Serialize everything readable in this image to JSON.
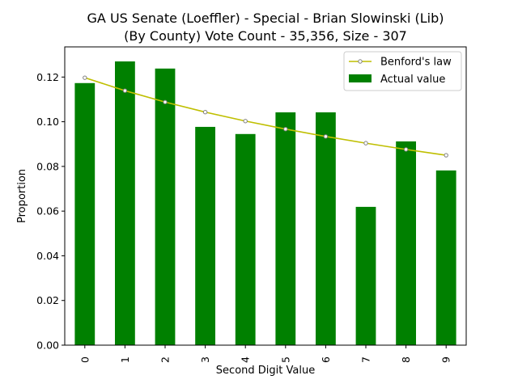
{
  "chart_data": {
    "type": "bar",
    "title_line1": "GA US Senate (Loeffler) - Special - Brian Slowinski (Lib)",
    "title_line2": "(By County) Vote Count - 35,356, Size - 307",
    "xlabel": "Second Digit Value",
    "ylabel": "Proportion",
    "categories": [
      "0",
      "1",
      "2",
      "3",
      "4",
      "5",
      "6",
      "7",
      "8",
      "9"
    ],
    "ylim": [
      0,
      0.1335
    ],
    "yticks": [
      0.0,
      0.02,
      0.04,
      0.06,
      0.08,
      0.1,
      0.12
    ],
    "ytick_labels": [
      "0.00",
      "0.02",
      "0.04",
      "0.06",
      "0.08",
      "0.10",
      "0.12"
    ],
    "grid": false,
    "legend_position": "top-right",
    "series": [
      {
        "name": "Actual value",
        "kind": "bar",
        "color": "#008000",
        "values": [
          0.1173,
          0.127,
          0.1238,
          0.0977,
          0.0945,
          0.1042,
          0.1042,
          0.0619,
          0.0912,
          0.0782
        ]
      },
      {
        "name": "Benford's law",
        "kind": "line",
        "color": "#bfbf00",
        "values": [
          0.1197,
          0.1139,
          0.1088,
          0.1043,
          0.1003,
          0.0967,
          0.0934,
          0.0904,
          0.0876,
          0.085
        ]
      }
    ]
  }
}
